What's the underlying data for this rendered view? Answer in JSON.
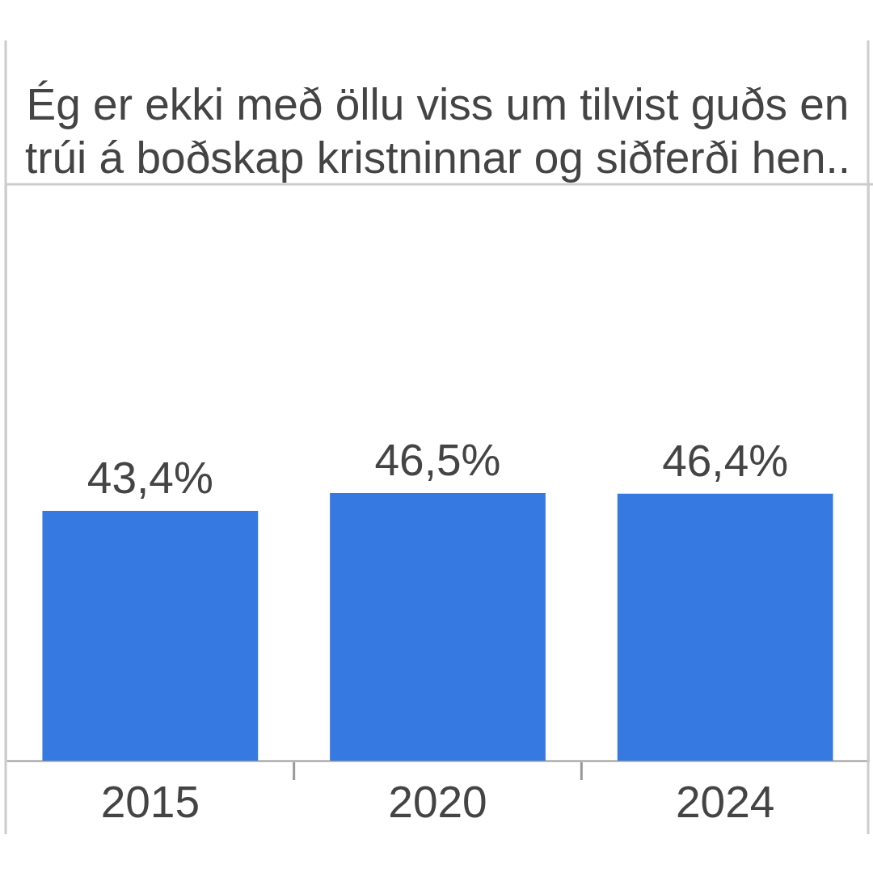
{
  "chart_data": {
    "type": "bar",
    "title": "Ég er ekki með öllu viss um tilvist guðs en\ntrúi á boðskap kristninnar og siðferði hen..",
    "categories": [
      "2015",
      "2020",
      "2024"
    ],
    "values": [
      43.4,
      46.5,
      46.4
    ],
    "value_labels": [
      "43,4%",
      "46,5%",
      "46,4%"
    ],
    "color": "#3679e0"
  }
}
